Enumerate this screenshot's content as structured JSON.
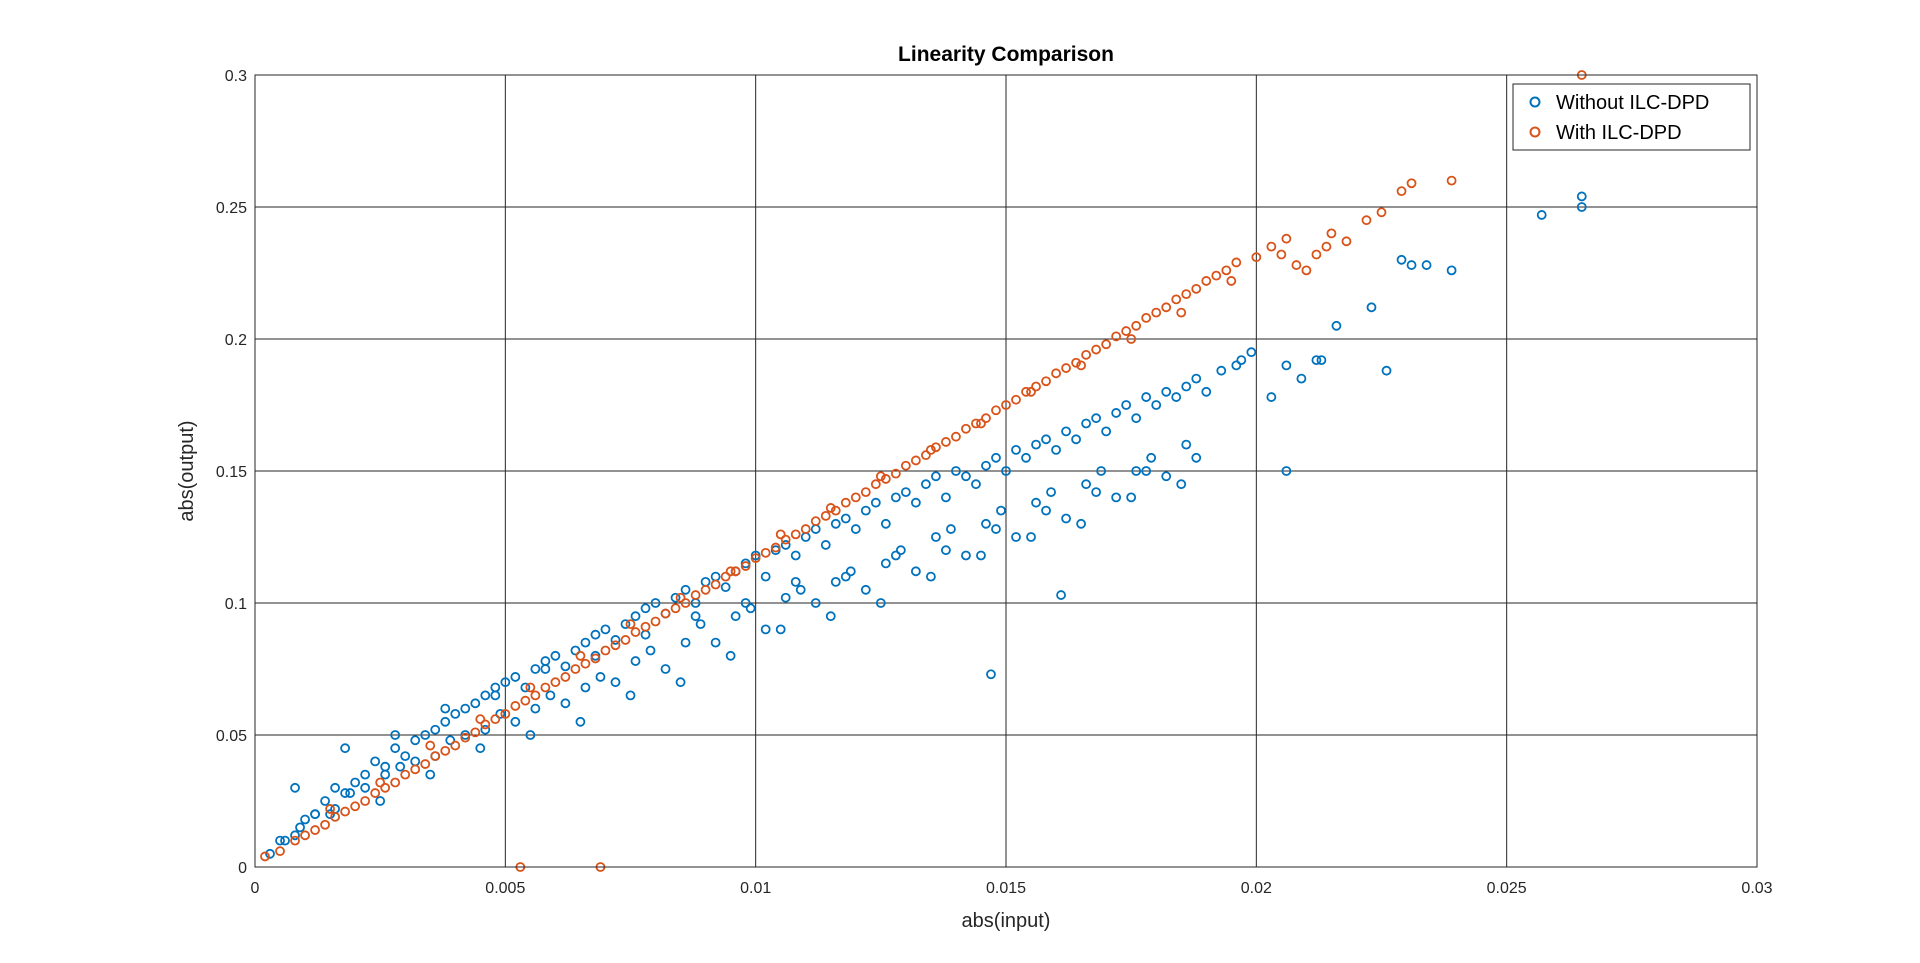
{
  "chart_data": {
    "type": "scatter",
    "title": "Linearity Comparison",
    "xlabel": "abs(input)",
    "ylabel": "abs(output)",
    "xlim": [
      0,
      0.03
    ],
    "ylim": [
      0,
      0.3
    ],
    "xticks": [
      0,
      0.005,
      0.01,
      0.015,
      0.02,
      0.025,
      0.03
    ],
    "xtick_labels": [
      "0",
      "0.005",
      "0.01",
      "0.015",
      "0.02",
      "0.025",
      "0.03"
    ],
    "yticks": [
      0,
      0.05,
      0.1,
      0.15,
      0.2,
      0.25,
      0.3
    ],
    "ytick_labels": [
      "0",
      "0.05",
      "0.1",
      "0.15",
      "0.2",
      "0.25",
      "0.3"
    ],
    "grid": true,
    "legend_position": "top-right",
    "series": [
      {
        "name": "Without ILC-DPD",
        "color": "#0072BD",
        "marker": "circle",
        "x": [
          0.0003,
          0.0005,
          0.0008,
          0.001,
          0.0012,
          0.0014,
          0.0016,
          0.0018,
          0.002,
          0.0022,
          0.0024,
          0.0026,
          0.0028,
          0.003,
          0.0032,
          0.0034,
          0.0036,
          0.0038,
          0.004,
          0.0042,
          0.0044,
          0.0046,
          0.0048,
          0.005,
          0.0052,
          0.0054,
          0.0056,
          0.0058,
          0.006,
          0.0062,
          0.0064,
          0.0066,
          0.0068,
          0.007,
          0.0072,
          0.0074,
          0.0076,
          0.0078,
          0.008,
          0.0082,
          0.0084,
          0.0086,
          0.0088,
          0.009,
          0.0092,
          0.0094,
          0.0096,
          0.0098,
          0.01,
          0.0102,
          0.0104,
          0.0106,
          0.0108,
          0.011,
          0.0112,
          0.0114,
          0.0116,
          0.0118,
          0.012,
          0.0122,
          0.0124,
          0.0126,
          0.0128,
          0.013,
          0.0132,
          0.0134,
          0.0136,
          0.0138,
          0.014,
          0.0142,
          0.0144,
          0.0146,
          0.0148,
          0.015,
          0.0152,
          0.0154,
          0.0156,
          0.0158,
          0.016,
          0.0162,
          0.0164,
          0.0166,
          0.0168,
          0.017,
          0.0172,
          0.0174,
          0.0176,
          0.0178,
          0.018,
          0.0182,
          0.0184,
          0.0186,
          0.0188,
          0.019,
          0.0193,
          0.0196,
          0.0199,
          0.0203,
          0.0206,
          0.0209,
          0.0212,
          0.0216,
          0.0223,
          0.0226,
          0.0231,
          0.0239,
          0.0257,
          0.0265,
          0.0265,
          0.0015,
          0.0025,
          0.0035,
          0.0045,
          0.0055,
          0.0065,
          0.0075,
          0.0085,
          0.0095,
          0.0105,
          0.0115,
          0.0125,
          0.0135,
          0.0145,
          0.0155,
          0.0165,
          0.0175,
          0.0185,
          0.0008,
          0.0018,
          0.0028,
          0.0038,
          0.0048,
          0.0058,
          0.0068,
          0.0078,
          0.0088,
          0.0098,
          0.0108,
          0.0118,
          0.0128,
          0.0138,
          0.0148,
          0.0158,
          0.0168,
          0.0178,
          0.0188,
          0.0012,
          0.0022,
          0.0032,
          0.0042,
          0.0052,
          0.0062,
          0.0072,
          0.0082,
          0.0092,
          0.0102,
          0.0112,
          0.0122,
          0.0132,
          0.0142,
          0.0152,
          0.0162,
          0.0172,
          0.0182,
          0.0006,
          0.0016,
          0.0026,
          0.0036,
          0.0046,
          0.0056,
          0.0066,
          0.0076,
          0.0086,
          0.0096,
          0.0106,
          0.0116,
          0.0126,
          0.0136,
          0.0146,
          0.0156,
          0.0166,
          0.0176,
          0.0186,
          0.0009,
          0.0019,
          0.0029,
          0.0039,
          0.0049,
          0.0059,
          0.0069,
          0.0079,
          0.0089,
          0.0099,
          0.0109,
          0.0119,
          0.0129,
          0.0139,
          0.0149,
          0.0159,
          0.0169,
          0.0179,
          0.0147,
          0.0161,
          0.0206,
          0.0234,
          0.0229,
          0.0197,
          0.0213
        ],
        "y": [
          0.005,
          0.01,
          0.012,
          0.018,
          0.02,
          0.025,
          0.03,
          0.028,
          0.032,
          0.035,
          0.04,
          0.038,
          0.045,
          0.042,
          0.048,
          0.05,
          0.052,
          0.055,
          0.058,
          0.06,
          0.062,
          0.065,
          0.068,
          0.07,
          0.072,
          0.068,
          0.075,
          0.078,
          0.08,
          0.076,
          0.082,
          0.085,
          0.088,
          0.09,
          0.086,
          0.092,
          0.095,
          0.098,
          0.1,
          0.096,
          0.102,
          0.105,
          0.1,
          0.108,
          0.11,
          0.106,
          0.112,
          0.115,
          0.118,
          0.11,
          0.12,
          0.122,
          0.118,
          0.125,
          0.128,
          0.122,
          0.13,
          0.132,
          0.128,
          0.135,
          0.138,
          0.13,
          0.14,
          0.142,
          0.138,
          0.145,
          0.148,
          0.14,
          0.15,
          0.148,
          0.145,
          0.152,
          0.155,
          0.15,
          0.158,
          0.155,
          0.16,
          0.162,
          0.158,
          0.165,
          0.162,
          0.168,
          0.17,
          0.165,
          0.172,
          0.175,
          0.17,
          0.178,
          0.175,
          0.18,
          0.178,
          0.182,
          0.185,
          0.18,
          0.188,
          0.19,
          0.195,
          0.178,
          0.15,
          0.185,
          0.192,
          0.205,
          0.212,
          0.188,
          0.228,
          0.226,
          0.247,
          0.25,
          0.254,
          0.02,
          0.025,
          0.035,
          0.045,
          0.05,
          0.055,
          0.065,
          0.07,
          0.08,
          0.09,
          0.095,
          0.1,
          0.11,
          0.118,
          0.125,
          0.13,
          0.14,
          0.145,
          0.03,
          0.045,
          0.05,
          0.06,
          0.065,
          0.075,
          0.08,
          0.088,
          0.095,
          0.1,
          0.108,
          0.11,
          0.118,
          0.12,
          0.128,
          0.135,
          0.142,
          0.15,
          0.155,
          0.02,
          0.03,
          0.04,
          0.05,
          0.055,
          0.062,
          0.07,
          0.075,
          0.085,
          0.09,
          0.1,
          0.105,
          0.112,
          0.118,
          0.125,
          0.132,
          0.14,
          0.148,
          0.01,
          0.022,
          0.035,
          0.042,
          0.052,
          0.06,
          0.068,
          0.078,
          0.085,
          0.095,
          0.102,
          0.108,
          0.115,
          0.125,
          0.13,
          0.138,
          0.145,
          0.15,
          0.16,
          0.015,
          0.028,
          0.038,
          0.048,
          0.058,
          0.065,
          0.072,
          0.082,
          0.092,
          0.098,
          0.105,
          0.112,
          0.12,
          0.128,
          0.135,
          0.142,
          0.15,
          0.155,
          0.073,
          0.103,
          0.19,
          0.228,
          0.23,
          0.192,
          0.192
        ]
      },
      {
        "name": "With ILC-DPD",
        "color": "#D95319",
        "marker": "circle",
        "x": [
          0.0002,
          0.0005,
          0.0008,
          0.001,
          0.0012,
          0.0014,
          0.0016,
          0.0018,
          0.002,
          0.0022,
          0.0024,
          0.0026,
          0.0028,
          0.003,
          0.0032,
          0.0034,
          0.0036,
          0.0038,
          0.004,
          0.0042,
          0.0044,
          0.0046,
          0.0048,
          0.005,
          0.0052,
          0.0054,
          0.0056,
          0.0058,
          0.006,
          0.0062,
          0.0064,
          0.0066,
          0.0068,
          0.007,
          0.0072,
          0.0074,
          0.0076,
          0.0078,
          0.008,
          0.0082,
          0.0084,
          0.0086,
          0.0088,
          0.009,
          0.0092,
          0.0094,
          0.0096,
          0.0098,
          0.01,
          0.0102,
          0.0104,
          0.0106,
          0.0108,
          0.011,
          0.0112,
          0.0114,
          0.0116,
          0.0118,
          0.012,
          0.0122,
          0.0124,
          0.0126,
          0.0128,
          0.013,
          0.0132,
          0.0134,
          0.0136,
          0.0138,
          0.014,
          0.0142,
          0.0144,
          0.0146,
          0.0148,
          0.015,
          0.0152,
          0.0154,
          0.0156,
          0.0158,
          0.016,
          0.0162,
          0.0164,
          0.0166,
          0.0168,
          0.017,
          0.0172,
          0.0174,
          0.0176,
          0.0178,
          0.018,
          0.0182,
          0.0184,
          0.0186,
          0.0188,
          0.019,
          0.0192,
          0.0194,
          0.0196,
          0.02,
          0.0203,
          0.0206,
          0.0208,
          0.021,
          0.0212,
          0.0214,
          0.0218,
          0.0222,
          0.0225,
          0.0229,
          0.0231,
          0.0239,
          0.0265,
          0.0053,
          0.0069,
          0.0015,
          0.0025,
          0.0035,
          0.0045,
          0.0055,
          0.0065,
          0.0075,
          0.0085,
          0.0095,
          0.0105,
          0.0115,
          0.0125,
          0.0135,
          0.0145,
          0.0155,
          0.0165,
          0.0175,
          0.0185,
          0.0195,
          0.0205,
          0.0215
        ],
        "y": [
          0.004,
          0.006,
          0.01,
          0.012,
          0.014,
          0.016,
          0.019,
          0.021,
          0.023,
          0.025,
          0.028,
          0.03,
          0.032,
          0.035,
          0.037,
          0.039,
          0.042,
          0.044,
          0.046,
          0.049,
          0.051,
          0.054,
          0.056,
          0.058,
          0.061,
          0.063,
          0.065,
          0.068,
          0.07,
          0.072,
          0.075,
          0.077,
          0.079,
          0.082,
          0.084,
          0.086,
          0.089,
          0.091,
          0.093,
          0.096,
          0.098,
          0.1,
          0.103,
          0.105,
          0.107,
          0.11,
          0.112,
          0.114,
          0.117,
          0.119,
          0.121,
          0.124,
          0.126,
          0.128,
          0.131,
          0.133,
          0.135,
          0.138,
          0.14,
          0.142,
          0.145,
          0.147,
          0.149,
          0.152,
          0.154,
          0.156,
          0.159,
          0.161,
          0.163,
          0.166,
          0.168,
          0.17,
          0.173,
          0.175,
          0.177,
          0.18,
          0.182,
          0.184,
          0.187,
          0.189,
          0.191,
          0.194,
          0.196,
          0.198,
          0.201,
          0.203,
          0.205,
          0.208,
          0.21,
          0.212,
          0.215,
          0.217,
          0.219,
          0.222,
          0.224,
          0.226,
          0.229,
          0.231,
          0.235,
          0.238,
          0.228,
          0.226,
          0.232,
          0.235,
          0.237,
          0.245,
          0.248,
          0.256,
          0.259,
          0.26,
          0.3,
          0.0,
          0.0,
          0.022,
          0.032,
          0.046,
          0.056,
          0.068,
          0.08,
          0.092,
          0.102,
          0.112,
          0.126,
          0.136,
          0.148,
          0.158,
          0.168,
          0.18,
          0.19,
          0.2,
          0.21,
          0.222,
          0.232,
          0.24
        ]
      }
    ]
  }
}
